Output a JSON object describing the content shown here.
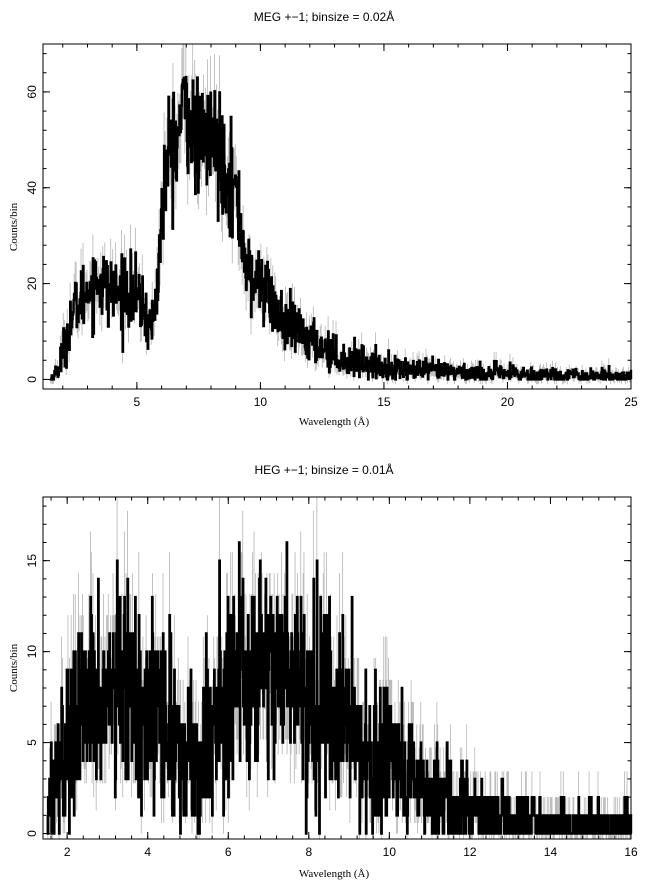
{
  "chart_data": [
    {
      "type": "line",
      "title": "MEG +−1; binsize = 0.02Å",
      "xlabel": "Wavelength (Å)",
      "ylabel": "Counts/bin",
      "xlim": [
        1.2,
        25
      ],
      "ylim": [
        -2,
        70
      ],
      "xticks": [
        5,
        10,
        15,
        20,
        25
      ],
      "yticks": [
        0,
        20,
        40,
        60
      ],
      "grid": false,
      "series": [
        {
          "x": [
            1.5,
            1.8,
            2.0,
            2.2,
            2.5,
            2.8,
            3.0,
            3.3,
            3.5,
            3.8,
            4.0,
            4.3,
            4.5,
            4.8,
            5.0,
            5.3,
            5.5,
            5.7,
            5.9,
            6.0,
            6.2,
            6.4,
            6.6,
            6.8,
            7.0,
            7.2,
            7.4,
            7.6,
            7.8,
            8.0,
            8.2,
            8.4,
            8.6,
            8.8,
            9.0,
            9.2,
            9.4,
            9.6,
            9.8,
            10.0,
            10.3,
            10.6,
            11.0,
            11.5,
            12.0,
            12.5,
            13.0,
            13.5,
            14.0,
            14.5,
            15.0,
            16.0,
            17.0,
            18.0,
            19.0,
            20.0,
            21.0,
            22.0,
            23.0,
            24.0,
            25.0
          ],
          "y": [
            0,
            2,
            6,
            10,
            15,
            17,
            19,
            20,
            21,
            19,
            18,
            18,
            19,
            18,
            17,
            14,
            11,
            13,
            25,
            35,
            44,
            50,
            49,
            55,
            58,
            52,
            50,
            48,
            51,
            50,
            49,
            47,
            45,
            42,
            38,
            32,
            25,
            20,
            20,
            21,
            18,
            14,
            11,
            10,
            8,
            7,
            5,
            4,
            4,
            3,
            2.5,
            2,
            1.8,
            1.5,
            1.3,
            1.2,
            1.0,
            0.9,
            0.8,
            0.7,
            0.6
          ]
        }
      ]
    },
    {
      "type": "line",
      "title": "HEG +−1; binsize = 0.01Å",
      "xlabel": "Wavelength (Å)",
      "ylabel": "Counts/bin",
      "xlim": [
        1.4,
        16
      ],
      "ylim": [
        -0.3,
        18.5
      ],
      "xticks": [
        2,
        4,
        6,
        8,
        10,
        12,
        14,
        16
      ],
      "yticks": [
        0,
        5,
        10,
        15
      ],
      "grid": false,
      "series": [
        {
          "x": [
            1.5,
            1.7,
            2.0,
            2.3,
            2.6,
            3.0,
            3.3,
            3.6,
            4.0,
            4.3,
            4.6,
            5.0,
            5.3,
            5.6,
            5.9,
            6.2,
            6.5,
            6.8,
            7.1,
            7.4,
            7.7,
            8.0,
            8.3,
            8.6,
            9.0,
            9.3,
            9.6,
            10.0,
            10.4,
            10.8,
            11.2,
            11.6,
            12.0,
            12.5,
            13.0,
            13.5,
            14.0,
            14.5,
            15.0,
            15.5,
            16.0
          ],
          "y": [
            1.5,
            3,
            5,
            6.5,
            7,
            7.5,
            8,
            8,
            7.5,
            6.5,
            5.5,
            4,
            4.5,
            6,
            8,
            9,
            9,
            9.5,
            9.5,
            9,
            8.5,
            8,
            7.5,
            7,
            6,
            5,
            4,
            3.5,
            3,
            2.5,
            2,
            1.5,
            1.2,
            1,
            0.8,
            0.6,
            0.5,
            0.4,
            0.4,
            0.3,
            0.3
          ]
        }
      ]
    }
  ]
}
